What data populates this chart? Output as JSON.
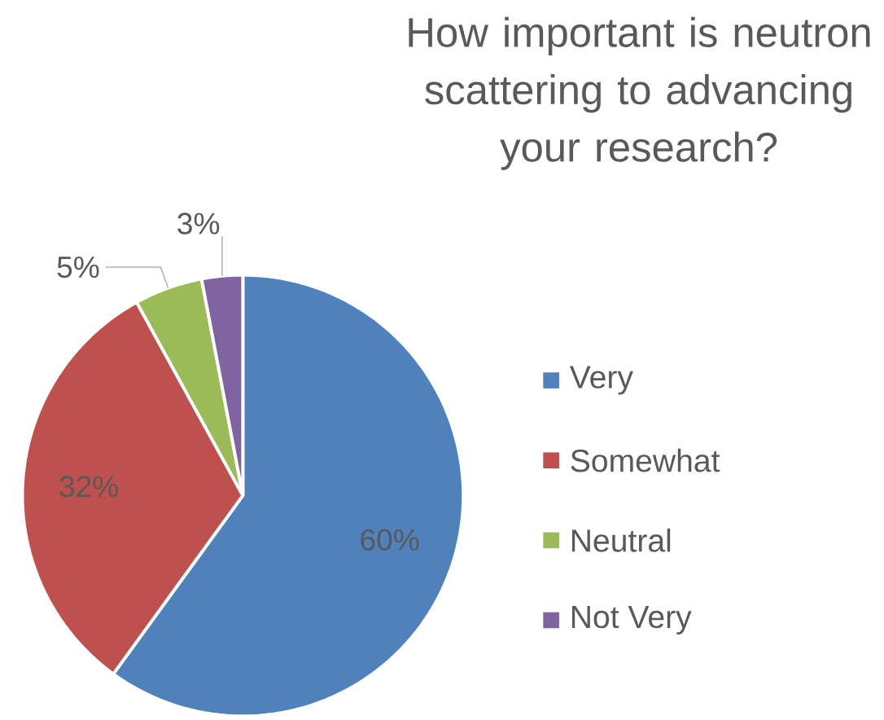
{
  "chart_data": {
    "type": "pie",
    "title": "How important is neutron scattering to advancing your research?",
    "categories": [
      "Very",
      "Somewhat",
      "Neutral",
      "Not Very"
    ],
    "values": [
      60,
      32,
      5,
      3
    ],
    "colors": [
      "#4f81bd",
      "#c0504d",
      "#9bbb59",
      "#8064a2"
    ],
    "value_labels": [
      "60%",
      "32%",
      "5%",
      "3%"
    ],
    "legend": "right"
  }
}
